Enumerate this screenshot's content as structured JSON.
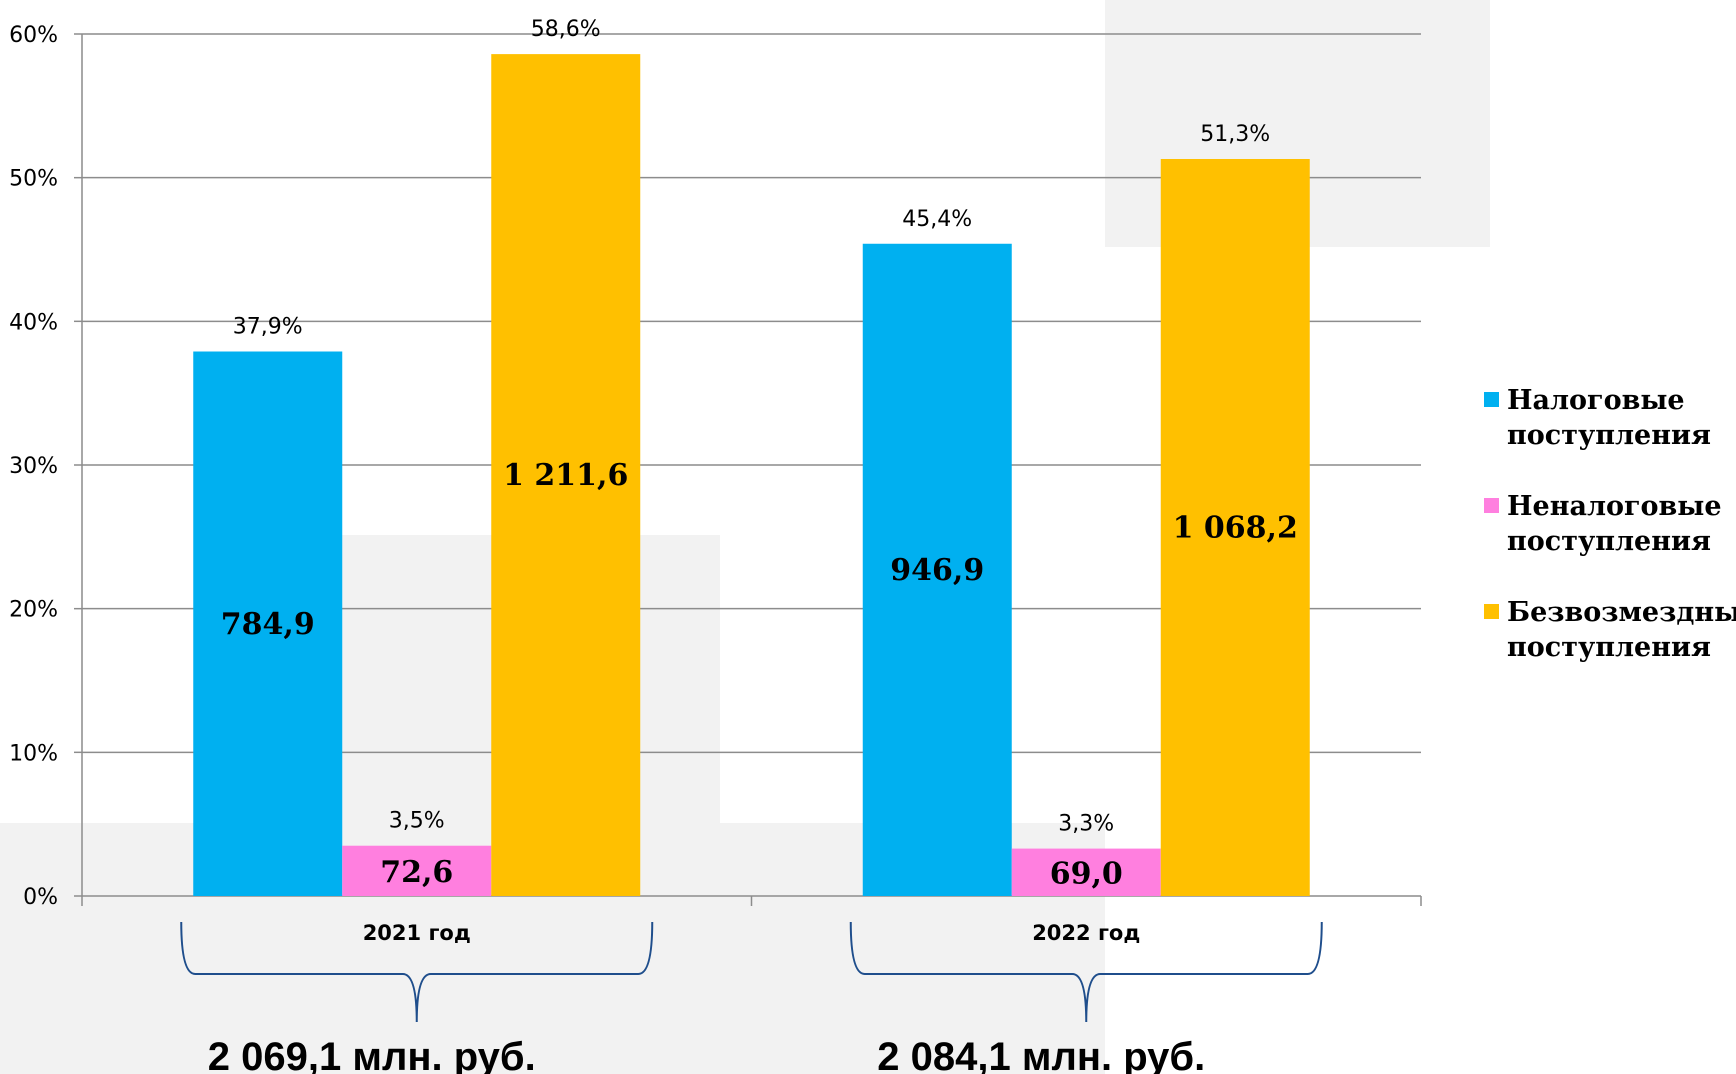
{
  "chart_data": {
    "type": "bar",
    "categories": [
      "2021 год",
      "2022 год"
    ],
    "y_ticks": [
      "0%",
      "10%",
      "20%",
      "30%",
      "40%",
      "50%",
      "60%"
    ],
    "ylim": [
      0,
      60
    ],
    "grid": true,
    "legend_position": "right",
    "series": [
      {
        "name": "Налоговые поступления",
        "legend_lines": [
          "Налоговые",
          "поступления"
        ],
        "color": "#00B0F0",
        "values": [
          37.9,
          45.4
        ],
        "pct_labels": [
          "37,9%",
          "45,4%"
        ],
        "amount_labels": [
          "784,9",
          "946,9"
        ]
      },
      {
        "name": "Неналоговые поступления",
        "legend_lines": [
          "Неналоговые",
          "поступления"
        ],
        "color": "#FF7FDF",
        "values": [
          3.5,
          3.3
        ],
        "pct_labels": [
          "3,5%",
          "3,3%"
        ],
        "amount_labels": [
          "72,6",
          "69,0"
        ]
      },
      {
        "name": "Безвозмездные поступления",
        "legend_lines": [
          "Безвозмездные",
          "поступления"
        ],
        "color": "#FFC000",
        "values": [
          58.6,
          51.3
        ],
        "pct_labels": [
          "58,6%",
          "51,3%"
        ],
        "amount_labels": [
          "1 211,6",
          "1 068,2"
        ]
      }
    ],
    "totals": [
      "2 069,1 млн. руб.",
      "2 084,1 млн. руб."
    ]
  }
}
